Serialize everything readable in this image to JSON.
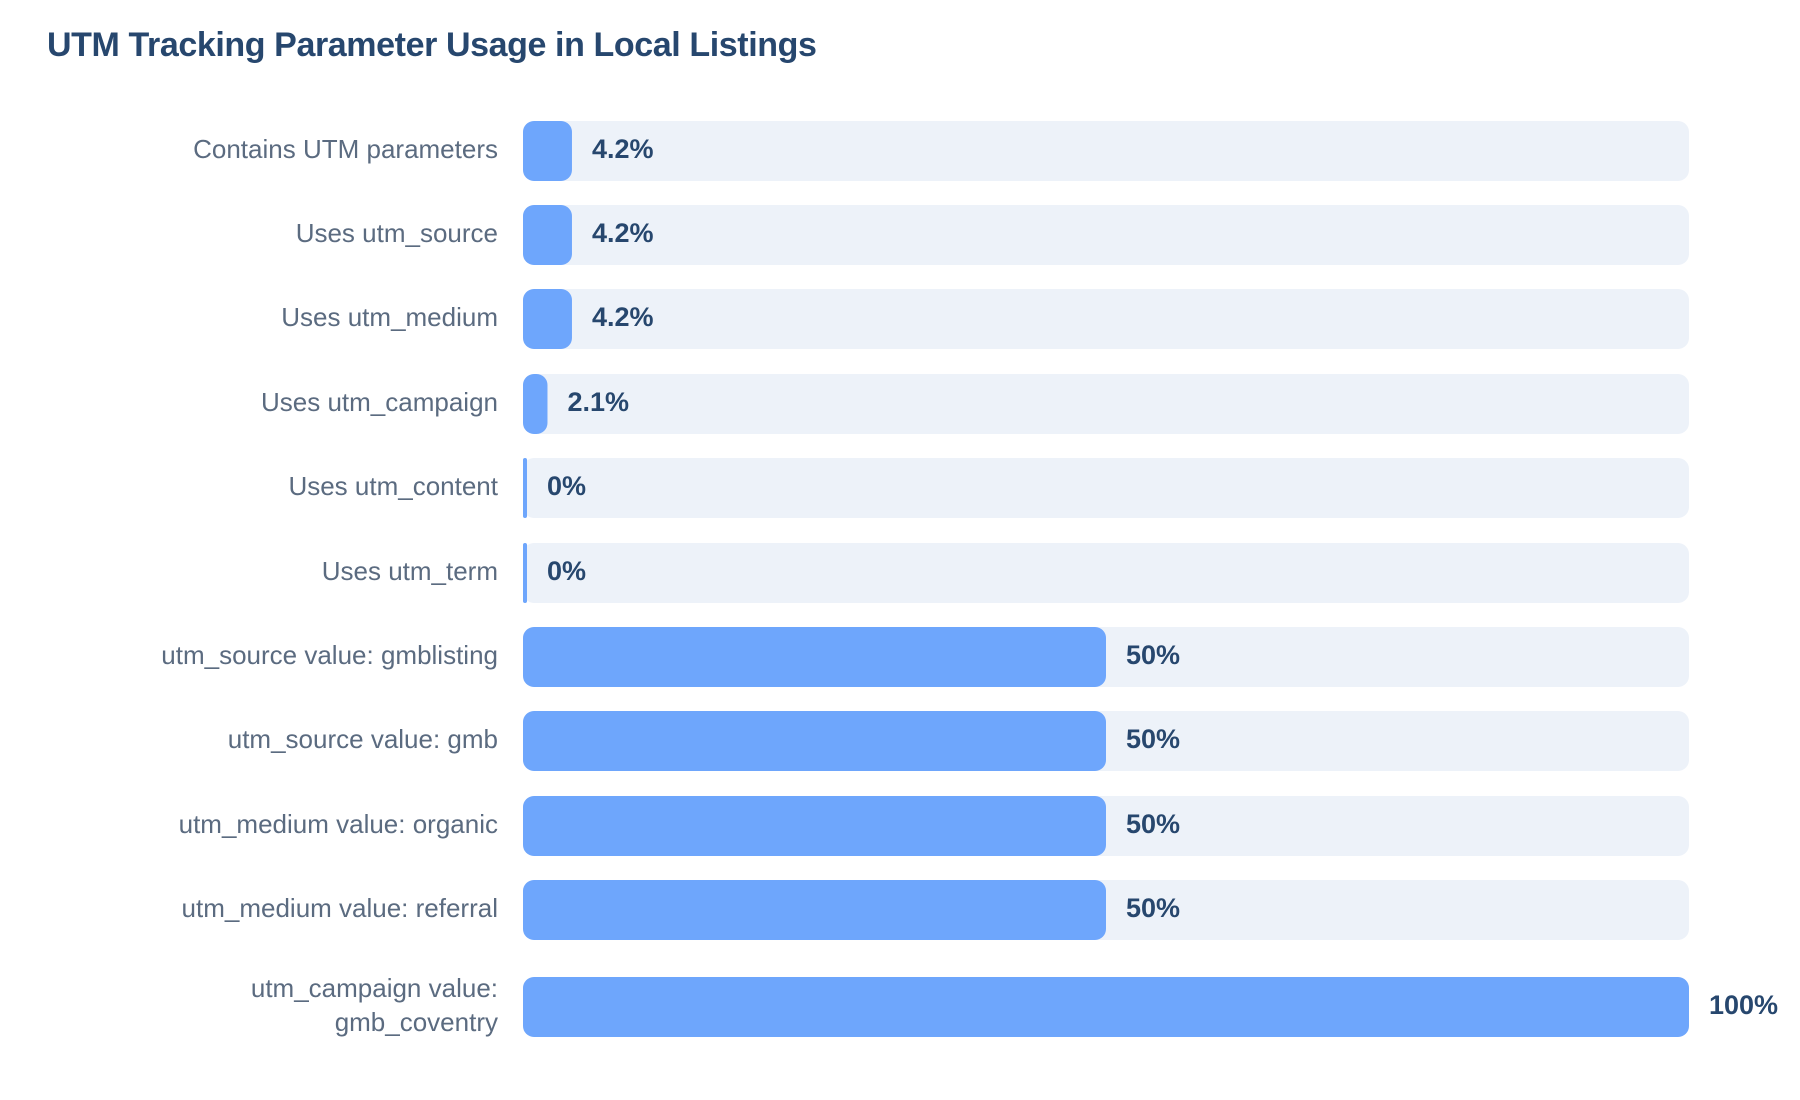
{
  "chart_data": {
    "type": "bar",
    "orientation": "horizontal",
    "title": "UTM Tracking Parameter Usage in Local Listings",
    "categories": [
      "Contains UTM parameters",
      "Uses utm_source",
      "Uses utm_medium",
      "Uses utm_campaign",
      "Uses utm_content",
      "Uses utm_term",
      "utm_source value: gmblisting",
      "utm_source value: gmb",
      "utm_medium value: organic",
      "utm_medium value: referral",
      "utm_campaign value: gmb_coventry"
    ],
    "category_lines": [
      [
        "Contains UTM parameters"
      ],
      [
        "Uses utm_source"
      ],
      [
        "Uses utm_medium"
      ],
      [
        "Uses utm_campaign"
      ],
      [
        "Uses utm_content"
      ],
      [
        "Uses utm_term"
      ],
      [
        "utm_source value: gmblisting"
      ],
      [
        "utm_source value: gmb"
      ],
      [
        "utm_medium value: organic"
      ],
      [
        "utm_medium value: referral"
      ],
      [
        "utm_campaign value:",
        "gmb_coventry"
      ]
    ],
    "values": [
      4.2,
      4.2,
      4.2,
      2.1,
      0,
      0,
      50,
      50,
      50,
      50,
      100
    ],
    "value_labels": [
      "4.2%",
      "4.2%",
      "4.2%",
      "2.1%",
      "0%",
      "0%",
      "50%",
      "50%",
      "50%",
      "50%",
      "100%"
    ],
    "xlim": [
      0,
      100
    ],
    "xlabel": "",
    "ylabel": "",
    "grid": false,
    "legend": "none",
    "colors": {
      "bar": "#6ea6fc",
      "track": "#edf2f9",
      "title": "#27476e",
      "category_text": "#5b6b80",
      "value_text": "#27476e"
    }
  }
}
